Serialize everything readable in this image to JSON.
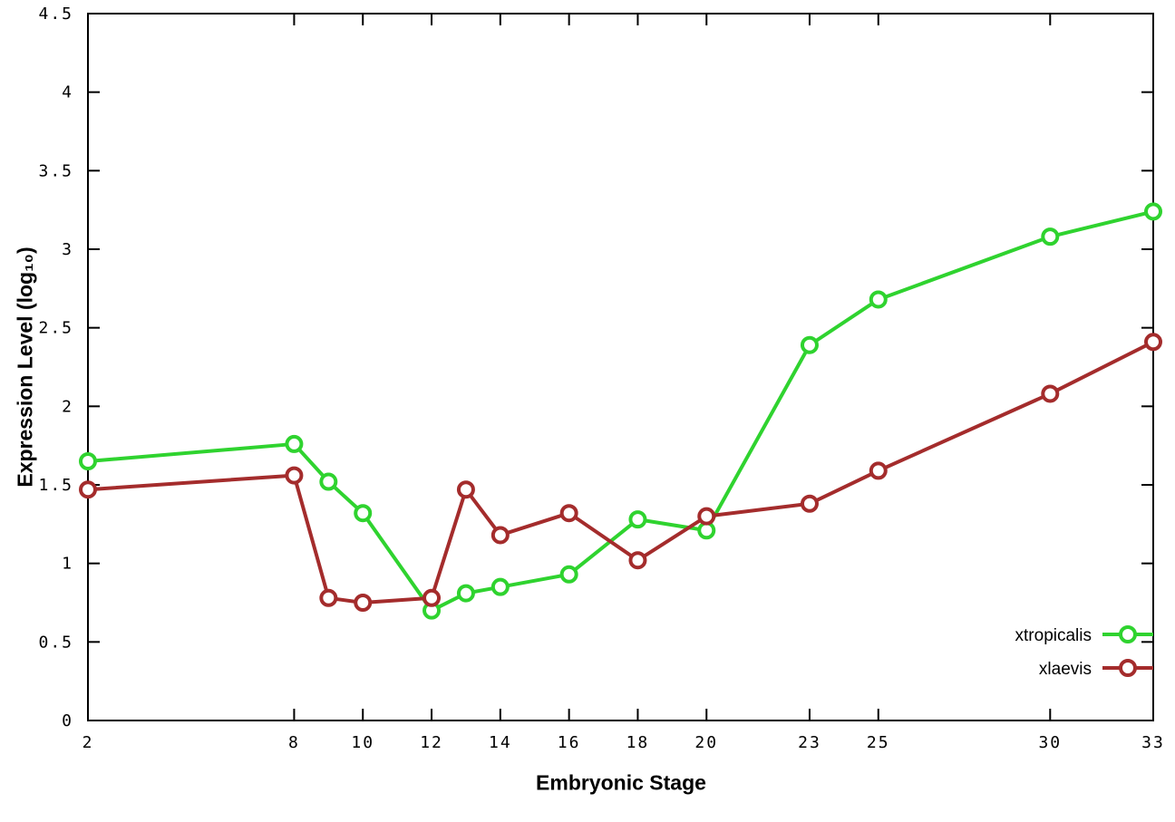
{
  "chart_data": {
    "type": "line",
    "title": "",
    "xlabel": "Embryonic Stage",
    "ylabel": "Expression Level (log₁₀)",
    "xlim": [
      2,
      33
    ],
    "ylim": [
      0,
      4.5
    ],
    "grid": false,
    "legend_position": "bottom-right",
    "marker": "open-circle",
    "x_ticks": [
      2,
      8,
      10,
      12,
      14,
      16,
      18,
      20,
      23,
      25,
      30,
      33
    ],
    "y_ticks": [
      0,
      0.5,
      1,
      1.5,
      2,
      2.5,
      3,
      3.5,
      4,
      4.5
    ],
    "x": [
      2,
      8,
      9,
      10,
      12,
      13,
      14,
      16,
      18,
      20,
      23,
      25,
      30,
      33
    ],
    "series": [
      {
        "name": "xtropicalis",
        "color": "#2fd32f",
        "values": [
          1.65,
          1.76,
          1.52,
          1.32,
          0.7,
          0.81,
          0.85,
          0.93,
          1.28,
          1.21,
          2.39,
          2.68,
          3.08,
          3.24
        ]
      },
      {
        "name": "xlaevis",
        "color": "#a42c2c",
        "values": [
          1.47,
          1.56,
          0.78,
          0.75,
          0.78,
          1.47,
          1.18,
          1.32,
          1.02,
          1.3,
          1.38,
          1.59,
          2.08,
          2.41
        ]
      }
    ]
  }
}
